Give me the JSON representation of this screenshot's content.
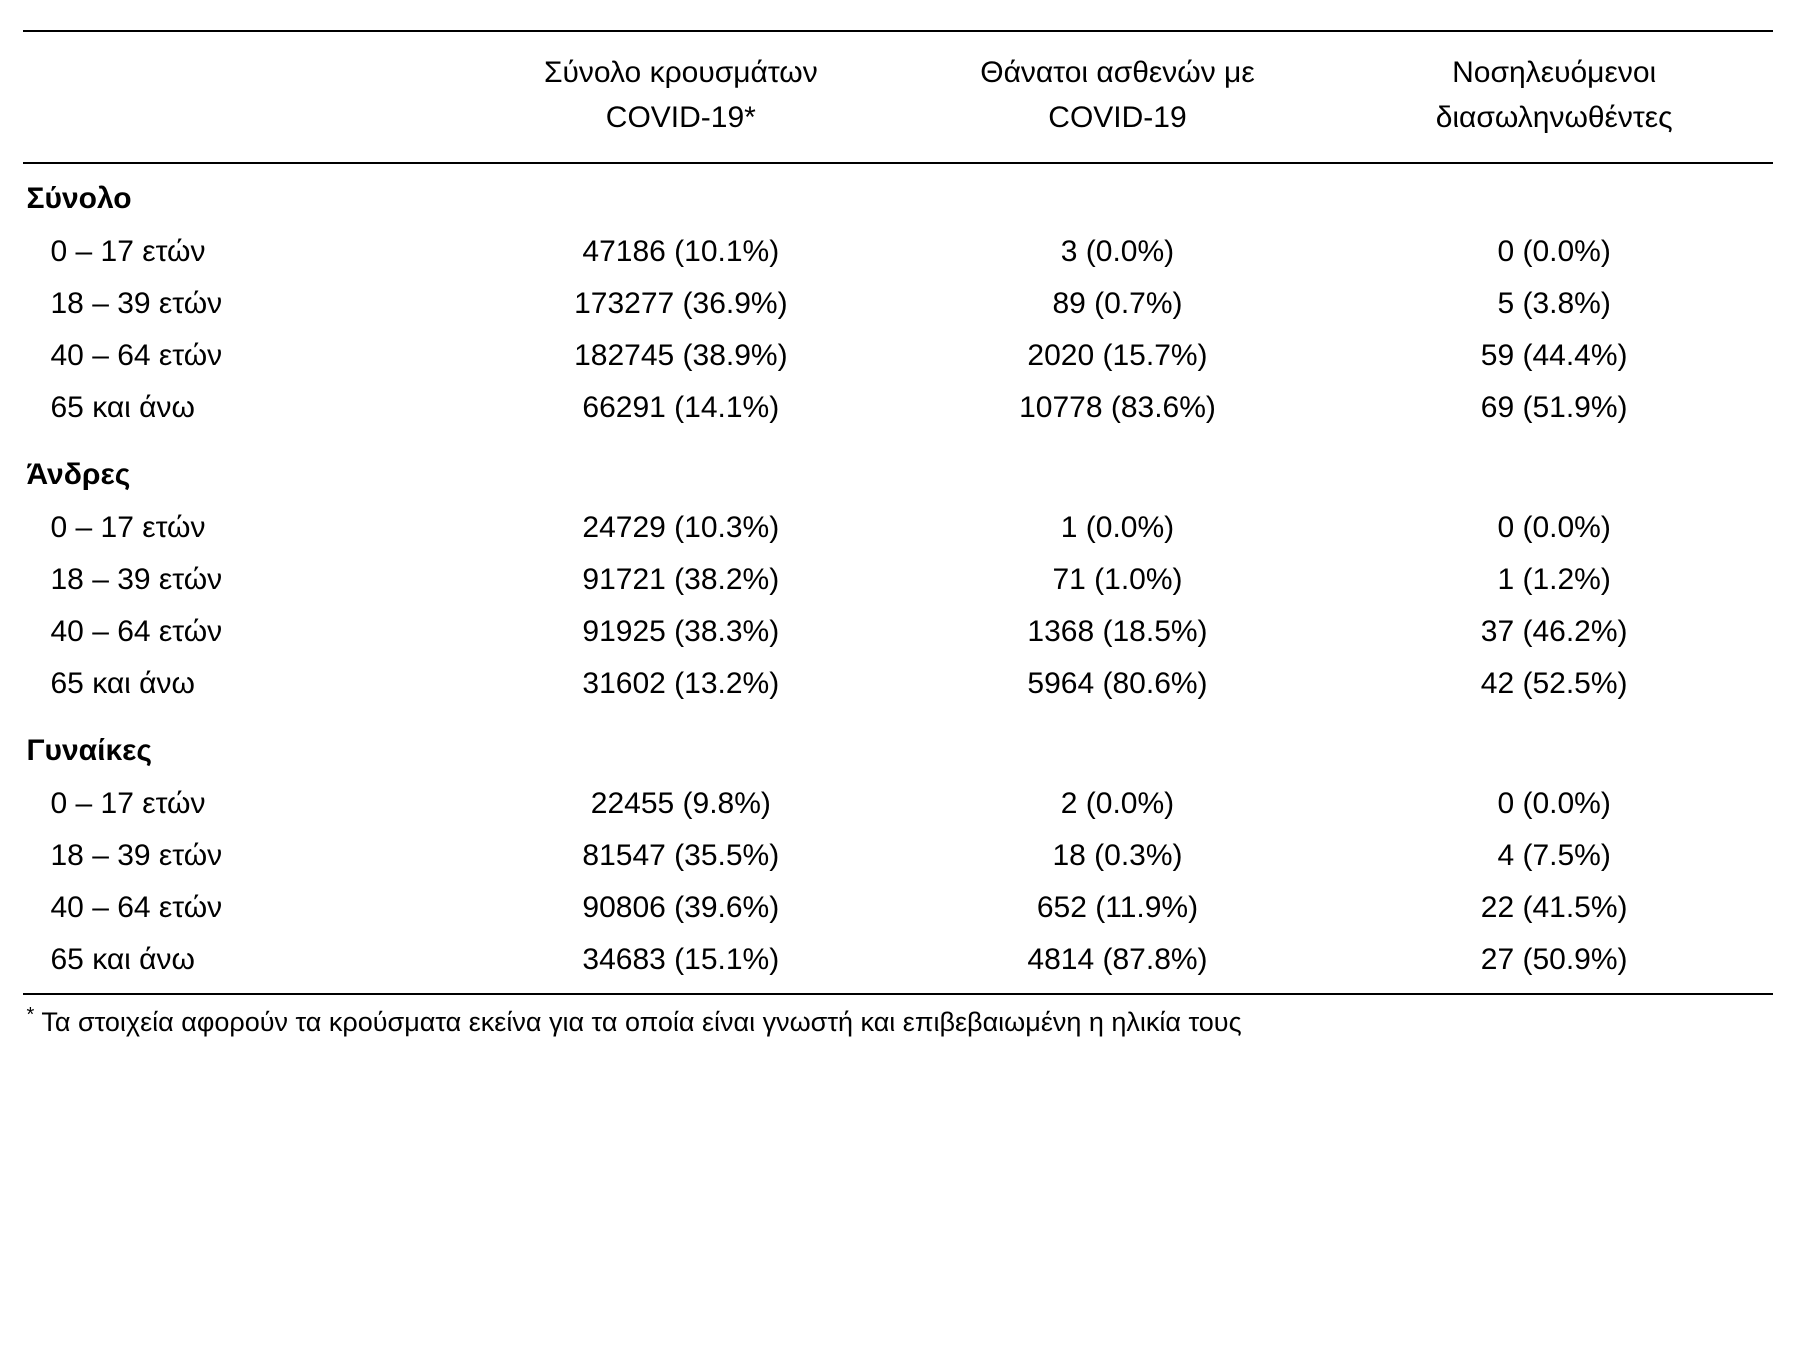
{
  "table": {
    "type": "table",
    "background_color": "#ffffff",
    "text_color": "#000000",
    "border_color": "#000000",
    "header_fontsize": 30,
    "body_fontsize": 30,
    "footnote_fontsize": 27,
    "columns": [
      {
        "label_line1": "",
        "label_line2": "",
        "align": "left",
        "width_pct": 24
      },
      {
        "label_line1": "Σύνολο κρουσμάτων",
        "label_line2": "COVID-19*",
        "align": "center"
      },
      {
        "label_line1": "Θάνατοι ασθενών με",
        "label_line2": "COVID-19",
        "align": "center"
      },
      {
        "label_line1": "Νοσηλευόμενοι",
        "label_line2": "διασωληνωθέντες",
        "align": "center"
      }
    ],
    "sections": [
      {
        "title": "Σύνολο",
        "rows": [
          {
            "label": "0 – 17 ετών",
            "cases": "47186 (10.1%)",
            "deaths": "3 (0.0%)",
            "intubated": "0 (0.0%)"
          },
          {
            "label": "18 – 39 ετών",
            "cases": "173277 (36.9%)",
            "deaths": "89 (0.7%)",
            "intubated": "5 (3.8%)"
          },
          {
            "label": "40 – 64 ετών",
            "cases": "182745 (38.9%)",
            "deaths": "2020 (15.7%)",
            "intubated": "59 (44.4%)"
          },
          {
            "label": "65 και άνω",
            "cases": "66291 (14.1%)",
            "deaths": "10778 (83.6%)",
            "intubated": "69 (51.9%)"
          }
        ]
      },
      {
        "title": "Άνδρες",
        "rows": [
          {
            "label": "0 – 17 ετών",
            "cases": "24729 (10.3%)",
            "deaths": "1 (0.0%)",
            "intubated": "0 (0.0%)"
          },
          {
            "label": "18 – 39 ετών",
            "cases": "91721 (38.2%)",
            "deaths": "71 (1.0%)",
            "intubated": "1 (1.2%)"
          },
          {
            "label": "40 – 64 ετών",
            "cases": "91925 (38.3%)",
            "deaths": "1368 (18.5%)",
            "intubated": "37 (46.2%)"
          },
          {
            "label": "65 και άνω",
            "cases": "31602 (13.2%)",
            "deaths": "5964 (80.6%)",
            "intubated": "42 (52.5%)"
          }
        ]
      },
      {
        "title": "Γυναίκες",
        "rows": [
          {
            "label": "0 – 17 ετών",
            "cases": "22455 (9.8%)",
            "deaths": "2 (0.0%)",
            "intubated": "0 (0.0%)"
          },
          {
            "label": "18 – 39 ετών",
            "cases": "81547 (35.5%)",
            "deaths": "18 (0.3%)",
            "intubated": "4 (7.5%)"
          },
          {
            "label": "40 – 64 ετών",
            "cases": "90806 (39.6%)",
            "deaths": "652 (11.9%)",
            "intubated": "22 (41.5%)"
          },
          {
            "label": "65 και άνω",
            "cases": "34683 (15.1%)",
            "deaths": "4814 (87.8%)",
            "intubated": "27 (50.9%)"
          }
        ]
      }
    ],
    "footnote_marker": "*",
    "footnote_text": "Τα στοιχεία αφορούν τα κρούσματα εκείνα για τα οποία είναι γνωστή και επιβεβαιωμένη η ηλικία τους"
  }
}
